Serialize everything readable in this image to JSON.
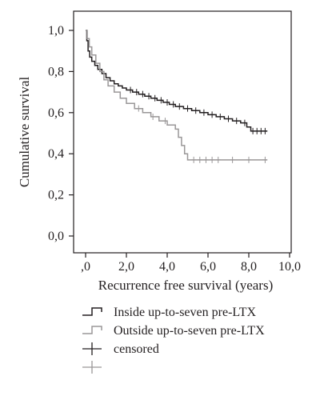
{
  "chart_data": {
    "type": "line",
    "subtype": "kaplan-meier step curve",
    "ylabel": "Cumulative survival",
    "xlabel": "Recurrence free survival (years)",
    "xlim": [
      0,
      10
    ],
    "ylim": [
      0,
      1
    ],
    "x_ticks": [
      ",0",
      "2,0",
      "4,0",
      "6,0",
      "8,0",
      "10,0"
    ],
    "y_ticks": [
      "0,0",
      "0,2",
      "0,4",
      "0,6",
      "0,8",
      "1,0"
    ],
    "grid": false,
    "legend_position": "bottom",
    "series": [
      {
        "name": "Inside up-to-seven pre-LTX",
        "color": "#231f20",
        "steps": [
          [
            0,
            1.0
          ],
          [
            0.06,
            0.95
          ],
          [
            0.12,
            0.9
          ],
          [
            0.2,
            0.87
          ],
          [
            0.3,
            0.85
          ],
          [
            0.45,
            0.83
          ],
          [
            0.6,
            0.81
          ],
          [
            0.8,
            0.79
          ],
          [
            1.0,
            0.77
          ],
          [
            1.2,
            0.755
          ],
          [
            1.4,
            0.74
          ],
          [
            1.6,
            0.73
          ],
          [
            1.8,
            0.72
          ],
          [
            2.0,
            0.71
          ],
          [
            2.3,
            0.7
          ],
          [
            2.6,
            0.69
          ],
          [
            2.9,
            0.68
          ],
          [
            3.2,
            0.67
          ],
          [
            3.5,
            0.66
          ],
          [
            3.8,
            0.65
          ],
          [
            4.1,
            0.64
          ],
          [
            4.4,
            0.63
          ],
          [
            4.8,
            0.62
          ],
          [
            5.2,
            0.61
          ],
          [
            5.6,
            0.6
          ],
          [
            6.0,
            0.59
          ],
          [
            6.4,
            0.58
          ],
          [
            6.8,
            0.57
          ],
          [
            7.2,
            0.56
          ],
          [
            7.6,
            0.55
          ],
          [
            7.9,
            0.53
          ],
          [
            8.1,
            0.51
          ],
          [
            8.9,
            0.51
          ]
        ],
        "censored_x": [
          2.2,
          2.5,
          2.8,
          3.1,
          3.4,
          3.7,
          4.0,
          4.3,
          4.6,
          5.0,
          5.4,
          5.8,
          6.2,
          6.6,
          7.0,
          7.4,
          7.8,
          8.2,
          8.4,
          8.6,
          8.8
        ]
      },
      {
        "name": "Outside up-to-seven pre-LTX",
        "color": "#9a9798",
        "steps": [
          [
            0,
            1.0
          ],
          [
            0.08,
            0.96
          ],
          [
            0.18,
            0.92
          ],
          [
            0.3,
            0.88
          ],
          [
            0.5,
            0.84
          ],
          [
            0.7,
            0.8
          ],
          [
            0.9,
            0.76
          ],
          [
            1.1,
            0.73
          ],
          [
            1.4,
            0.7
          ],
          [
            1.7,
            0.67
          ],
          [
            2.0,
            0.645
          ],
          [
            2.4,
            0.62
          ],
          [
            2.8,
            0.6
          ],
          [
            3.2,
            0.58
          ],
          [
            3.6,
            0.56
          ],
          [
            4.0,
            0.54
          ],
          [
            4.4,
            0.52
          ],
          [
            4.55,
            0.48
          ],
          [
            4.7,
            0.44
          ],
          [
            4.85,
            0.4
          ],
          [
            5.0,
            0.37
          ],
          [
            8.9,
            0.37
          ]
        ],
        "censored_x": [
          2.6,
          3.3,
          3.9,
          5.3,
          5.6,
          5.9,
          6.2,
          6.5,
          7.2,
          8.0,
          8.8
        ]
      }
    ],
    "legend": [
      {
        "label": "Inside up-to-seven pre-LTX",
        "symbol": "step",
        "color": "#231f20"
      },
      {
        "label": "Outside up-to-seven pre-LTX",
        "symbol": "step",
        "color": "#9a9798"
      },
      {
        "label": "censored",
        "symbol": "cross",
        "color": "#231f20"
      },
      {
        "label": "",
        "symbol": "cross",
        "color": "#9a9798"
      }
    ]
  }
}
